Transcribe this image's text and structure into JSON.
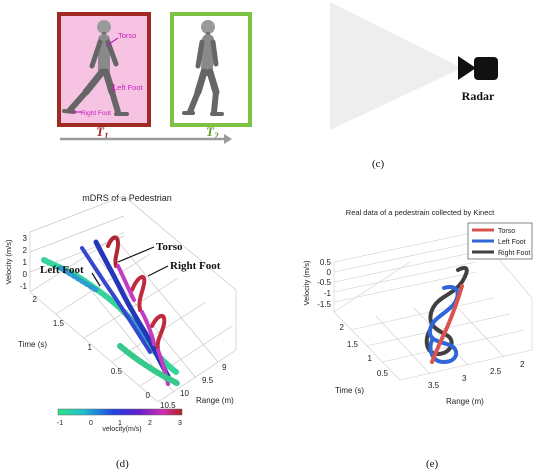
{
  "panel_c": {
    "label": "(c)",
    "frame1_label": "T",
    "frame1_sub": "1",
    "frame2_label": "T",
    "frame2_sub": "2",
    "annot_torso": "Torso",
    "annot_left_foot": "Left Foot",
    "annot_right_foot": "Right Foot",
    "radar_label": "Radar",
    "colors": {
      "frame1": "#9e2a22",
      "frame2": "#7dc243",
      "annot": "#c51fb9",
      "beam": "#eeeeee"
    }
  },
  "panel_d": {
    "label": "(d)",
    "title": "mDRS of a Pedestrian",
    "torso_label": "Torso",
    "right_foot_label": "Right Foot",
    "left_foot_label": "Left Foot",
    "velocity_axis_label": "Velocity (m/s)",
    "velocity_ticks": [
      "3",
      "2",
      "1",
      "0",
      "-1"
    ],
    "time_axis_label": "Time (s)",
    "time_ticks": [
      "2",
      "1.5",
      "1",
      "0.5",
      "0"
    ],
    "range_axis_label": "Range (m)",
    "range_ticks": [
      "10.5",
      "10",
      "9.5",
      "9"
    ],
    "colorbar_label": "velocity(m/s)",
    "colorbar_ticks": [
      "-1",
      "0",
      "1",
      "2",
      "3"
    ],
    "colorbar_colors": [
      "#30e080",
      "#20c0d0",
      "#2040e0",
      "#6020d0",
      "#d030b0",
      "#b02020"
    ]
  },
  "panel_e": {
    "label": "(e)",
    "chart_data": {
      "type": "line",
      "title": "Real data of a pedestrain collected by Kinect",
      "zlabel": "Velocity (m/s)",
      "ylabel": "Time (s)",
      "xlabel": "Range (m)",
      "z_ticks": [
        "0.5",
        "0",
        "-0.5",
        "-1",
        "-1.5"
      ],
      "y_ticks": [
        "2",
        "1.5",
        "1",
        "0.5"
      ],
      "x_ticks": [
        "3.5",
        "3",
        "2.5",
        "2"
      ],
      "series": [
        {
          "name": "Torso",
          "color": "#d9534f"
        },
        {
          "name": "Left Foot",
          "color": "#2f66d8"
        },
        {
          "name": "Right Foot",
          "color": "#404040"
        }
      ]
    }
  }
}
